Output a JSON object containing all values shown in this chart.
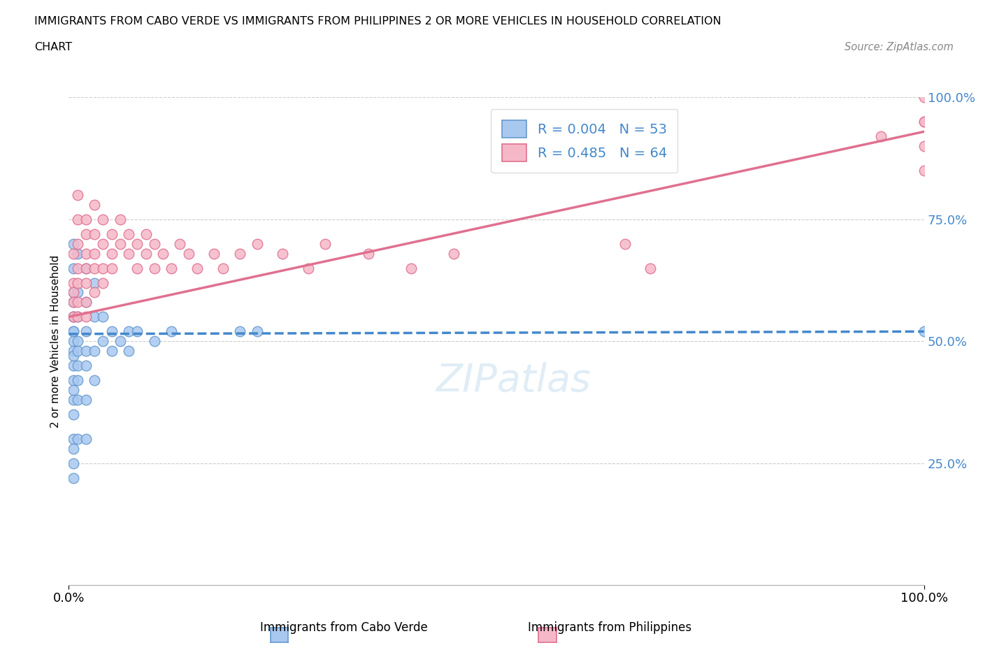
{
  "title_line1": "IMMIGRANTS FROM CABO VERDE VS IMMIGRANTS FROM PHILIPPINES 2 OR MORE VEHICLES IN HOUSEHOLD CORRELATION",
  "title_line2": "CHART",
  "source": "Source: ZipAtlas.com",
  "ylabel": "2 or more Vehicles in Household",
  "xlim": [
    0,
    100
  ],
  "ylim": [
    0,
    100
  ],
  "xtick_labels": [
    "0.0%",
    "100.0%"
  ],
  "ytick_labels": [
    "25.0%",
    "50.0%",
    "75.0%",
    "100.0%"
  ],
  "ytick_positions": [
    25,
    50,
    75,
    100
  ],
  "watermark": "ZIPatlas",
  "legend_labels": [
    "Immigrants from Cabo Verde",
    "Immigrants from Philippines"
  ],
  "cabo_verde_color": "#a8c8f0",
  "cabo_verde_edge": "#6699cc",
  "philippines_color": "#f5b8c8",
  "philippines_edge": "#e07090",
  "cabo_verde_R": 0.004,
  "cabo_verde_N": 53,
  "philippines_R": 0.485,
  "philippines_N": 64,
  "cabo_verde_line_color": "#4488cc",
  "philippines_line_color": "#e07090",
  "grid_color": "#cccccc",
  "text_color": "#4488cc",
  "cabo_verde_x": [
    0.5,
    0.5,
    0.5,
    0.5,
    0.5,
    0.5,
    0.5,
    0.5,
    0.5,
    0.5,
    0.5,
    0.5,
    0.5,
    0.5,
    0.5,
    0.5,
    0.5,
    0.5,
    0.5,
    0.5,
    1,
    1,
    1,
    1,
    1,
    1,
    1,
    1,
    1,
    2,
    2,
    2,
    2,
    2,
    2,
    2,
    3,
    3,
    3,
    3,
    4,
    4,
    5,
    5,
    6,
    7,
    7,
    8,
    10,
    12,
    20,
    22,
    100
  ],
  "cabo_verde_y": [
    70,
    65,
    60,
    58,
    55,
    55,
    52,
    52,
    50,
    48,
    47,
    45,
    42,
    40,
    38,
    35,
    30,
    28,
    25,
    22,
    68,
    60,
    55,
    50,
    48,
    45,
    42,
    38,
    30,
    65,
    58,
    52,
    48,
    45,
    38,
    30,
    62,
    55,
    48,
    42,
    55,
    50,
    52,
    48,
    50,
    52,
    48,
    52,
    50,
    52,
    52,
    52,
    52
  ],
  "philippines_x": [
    0.5,
    0.5,
    0.5,
    0.5,
    0.5,
    1,
    1,
    1,
    1,
    1,
    1,
    1,
    2,
    2,
    2,
    2,
    2,
    2,
    2,
    3,
    3,
    3,
    3,
    3,
    4,
    4,
    4,
    4,
    5,
    5,
    5,
    6,
    6,
    7,
    7,
    8,
    8,
    9,
    9,
    10,
    10,
    11,
    12,
    13,
    14,
    15,
    17,
    18,
    20,
    22,
    25,
    28,
    30,
    35,
    40,
    45,
    65,
    68,
    95,
    100,
    100,
    100,
    100,
    100
  ],
  "philippines_y": [
    68,
    62,
    60,
    58,
    55,
    80,
    75,
    70,
    65,
    62,
    58,
    55,
    75,
    72,
    68,
    65,
    62,
    58,
    55,
    78,
    72,
    68,
    65,
    60,
    75,
    70,
    65,
    62,
    72,
    68,
    65,
    75,
    70,
    72,
    68,
    70,
    65,
    72,
    68,
    70,
    65,
    68,
    65,
    70,
    68,
    65,
    68,
    65,
    68,
    70,
    68,
    65,
    70,
    68,
    65,
    68,
    70,
    65,
    92,
    95,
    90,
    85,
    95,
    100
  ],
  "cabo_verde_trend_x": [
    0,
    100
  ],
  "cabo_verde_trend_y": [
    51.5,
    52.0
  ],
  "philippines_trend_x": [
    0,
    100
  ],
  "philippines_trend_y": [
    55,
    93
  ]
}
